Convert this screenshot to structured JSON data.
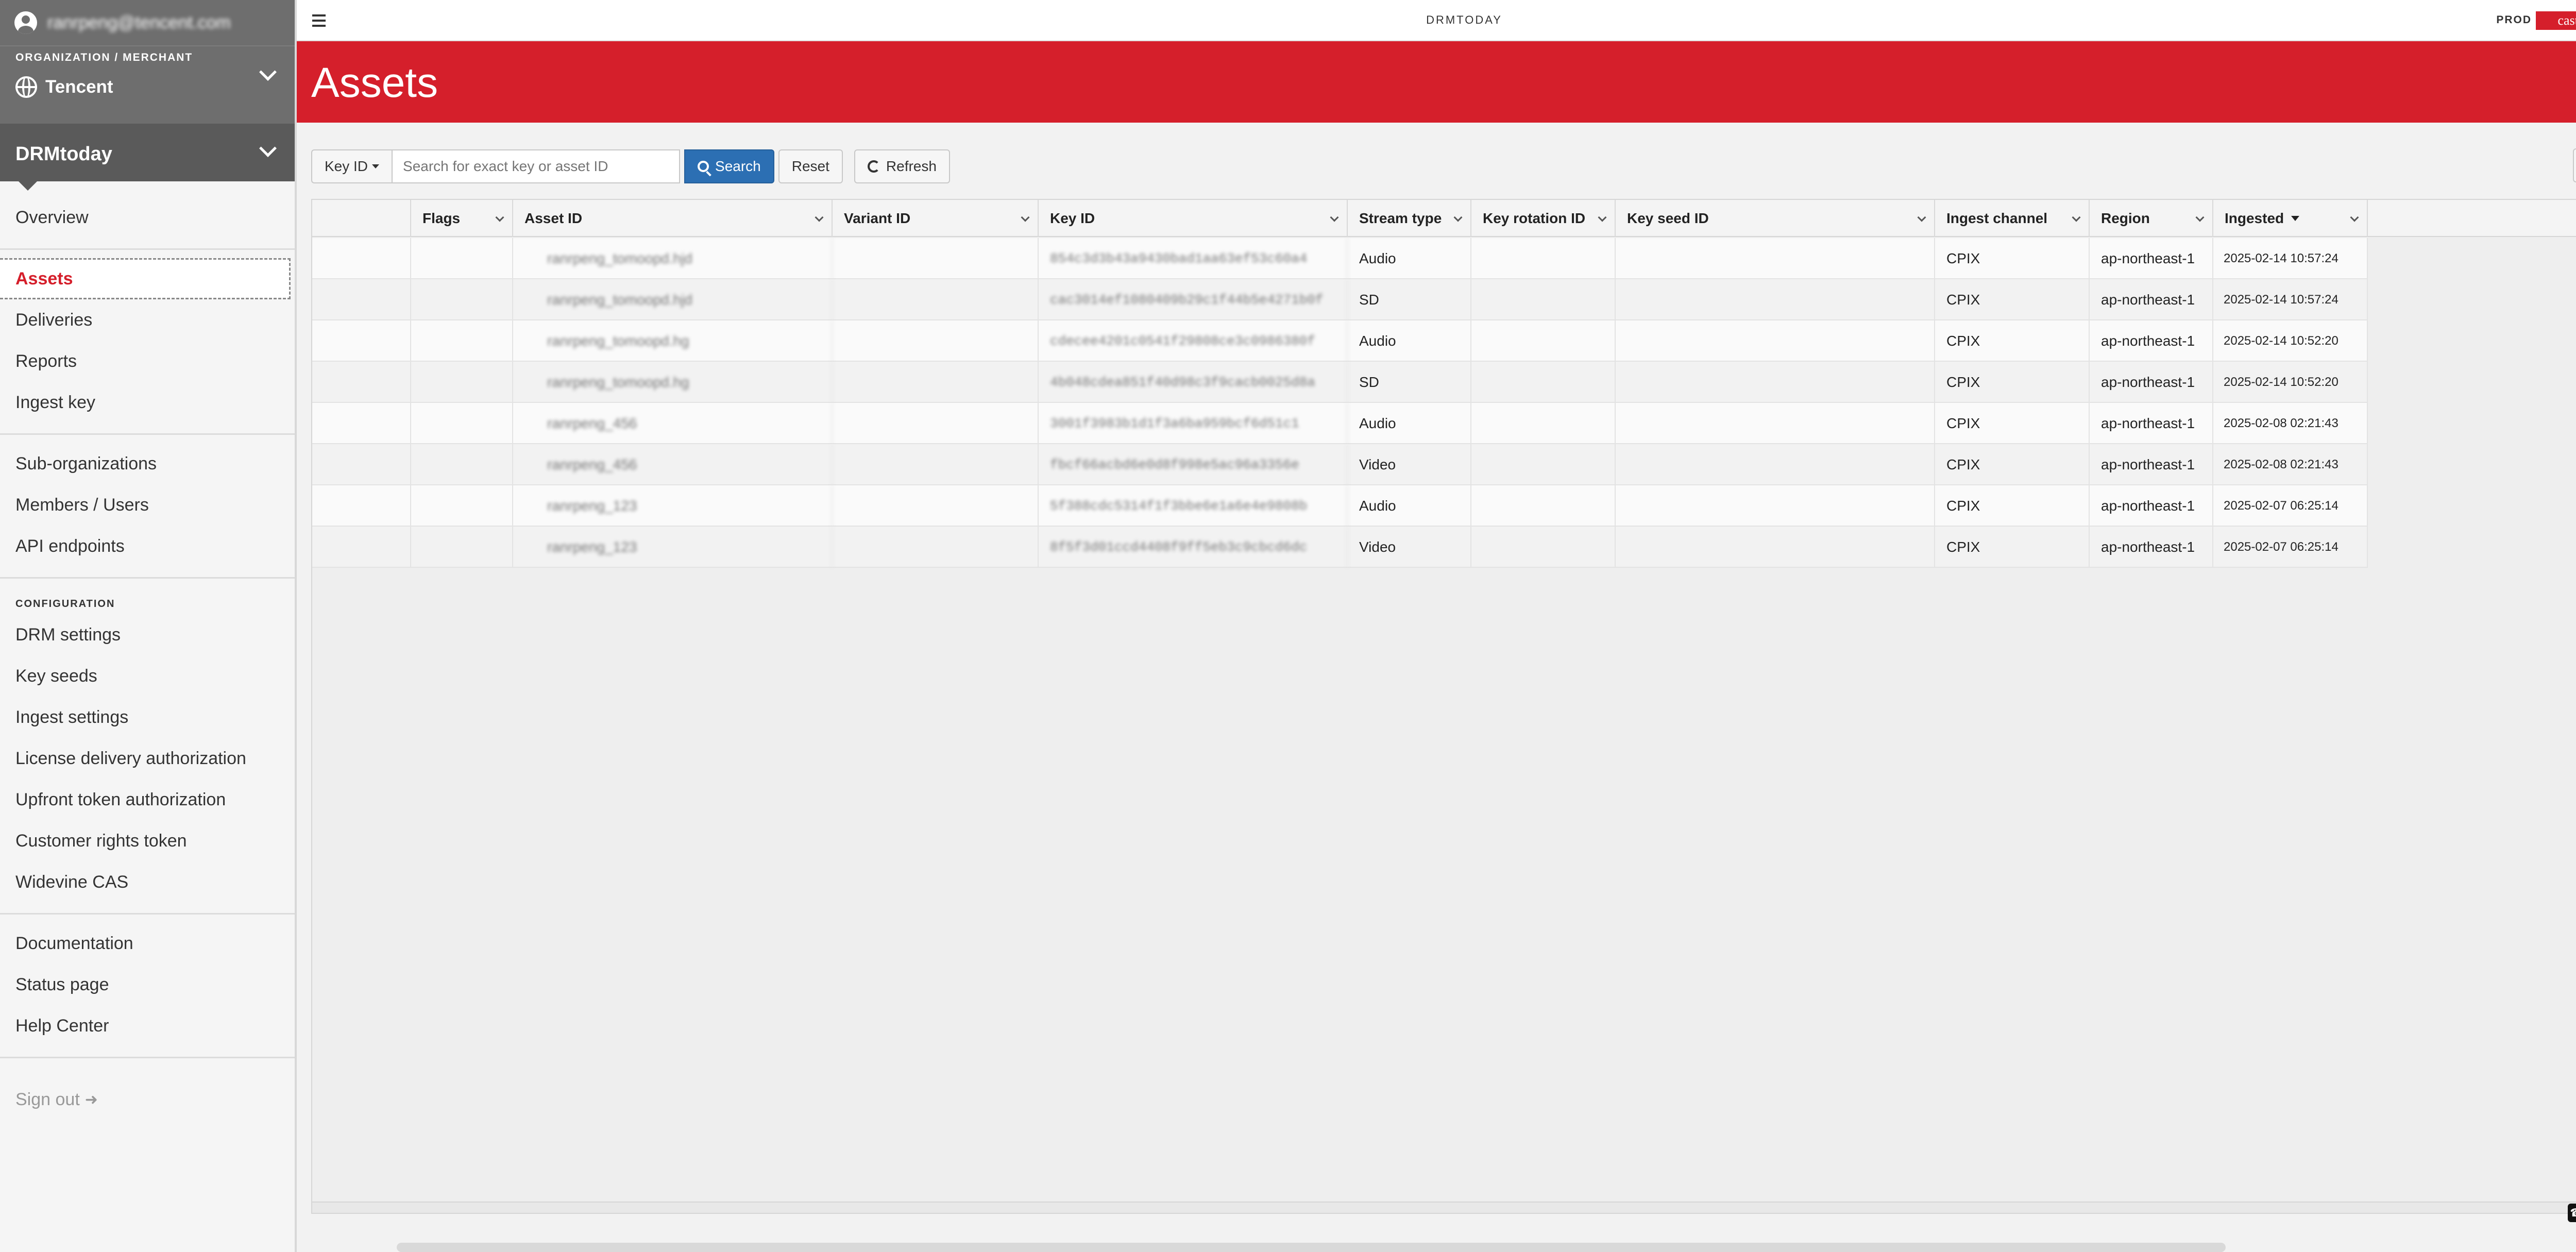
{
  "user": {
    "email": "ranrpeng@tencent.com"
  },
  "org": {
    "caption": "ORGANIZATION / MERCHANT",
    "name": "Tencent"
  },
  "app": {
    "name": "DRMtoday"
  },
  "nav": {
    "overview": "Overview",
    "group1": [
      "Assets",
      "Deliveries",
      "Reports",
      "Ingest key"
    ],
    "group2": [
      "Sub-organizations",
      "Members / Users",
      "API endpoints"
    ],
    "config_caption": "CONFIGURATION",
    "group3": [
      "DRM settings",
      "Key seeds",
      "Ingest settings",
      "License delivery authorization",
      "Upfront token authorization",
      "Customer rights token",
      "Widevine CAS"
    ],
    "group4": [
      "Documentation",
      "Status page",
      "Help Center"
    ],
    "signout": "Sign out"
  },
  "topbar": {
    "title": "DRMTODAY",
    "env": "PROD",
    "brand": "castLabs"
  },
  "page": {
    "title": "Assets"
  },
  "toolbar": {
    "keyid_label": "Key ID",
    "search_placeholder": "Search for exact key or asset ID",
    "search_label": "Search",
    "reset_label": "Reset",
    "refresh_label": "Refresh",
    "help_label": "?"
  },
  "table": {
    "columns": [
      "Flags",
      "Asset ID",
      "Variant ID",
      "Key ID",
      "Stream type",
      "Key rotation ID",
      "Key seed ID",
      "Ingest channel",
      "Region",
      "Ingested"
    ],
    "rows": [
      {
        "asset": "ranrpeng_tomoopd.hjd",
        "variant": "",
        "key": "854c3d3b43a9430bad1aa63ef53c60a4",
        "stream": "Audio",
        "channel": "CPIX",
        "region": "ap-northeast-1",
        "ingested": "2025-02-14 10:57:24"
      },
      {
        "asset": "ranrpeng_tomoopd.hjd",
        "variant": "",
        "key": "cac3014ef1080409b29c1f44b5e4271b0f",
        "stream": "SD",
        "channel": "CPIX",
        "region": "ap-northeast-1",
        "ingested": "2025-02-14 10:57:24"
      },
      {
        "asset": "ranrpeng_tomoopd.hg",
        "variant": "",
        "key": "cdecee4201c0541f29808ce3c0986380f",
        "stream": "Audio",
        "channel": "CPIX",
        "region": "ap-northeast-1",
        "ingested": "2025-02-14 10:52:20"
      },
      {
        "asset": "ranrpeng_tomoopd.hg",
        "variant": "",
        "key": "4b048cdea851f40d98c3f9cacb0025d8a",
        "stream": "SD",
        "channel": "CPIX",
        "region": "ap-northeast-1",
        "ingested": "2025-02-14 10:52:20"
      },
      {
        "asset": "ranrpeng_456",
        "variant": "",
        "key": "3001f3983b1d1f3a6ba959bcf6d51c1",
        "stream": "Audio",
        "channel": "CPIX",
        "region": "ap-northeast-1",
        "ingested": "2025-02-08 02:21:43"
      },
      {
        "asset": "ranrpeng_456",
        "variant": "",
        "key": "fbcf66acbd6e0d8f998e5ac96a3356e",
        "stream": "Video",
        "channel": "CPIX",
        "region": "ap-northeast-1",
        "ingested": "2025-02-08 02:21:43"
      },
      {
        "asset": "ranrpeng_123",
        "variant": "",
        "key": "5f388cdc5314f1f3bbe6e1a6e4e9808b",
        "stream": "Audio",
        "channel": "CPIX",
        "region": "ap-northeast-1",
        "ingested": "2025-02-07 06:25:14"
      },
      {
        "asset": "ranrpeng_123",
        "variant": "",
        "key": "8f5f3d01ccd4408f9ff5eb3c9cbcd6dc",
        "stream": "Video",
        "channel": "CPIX",
        "region": "ap-northeast-1",
        "ingested": "2025-02-07 06:25:14"
      }
    ]
  },
  "colors": {
    "accent": "#d51f2b",
    "primary_button": "#2c6fb3",
    "sidebar_dark": "#6e6e6e"
  },
  "icons": [
    "user-icon",
    "globe-icon",
    "chevron-down-icon",
    "menu-icon",
    "search-icon",
    "refresh-icon",
    "help-icon",
    "sign-out-icon",
    "sort-desc-icon",
    "grid-menu-icon"
  ]
}
